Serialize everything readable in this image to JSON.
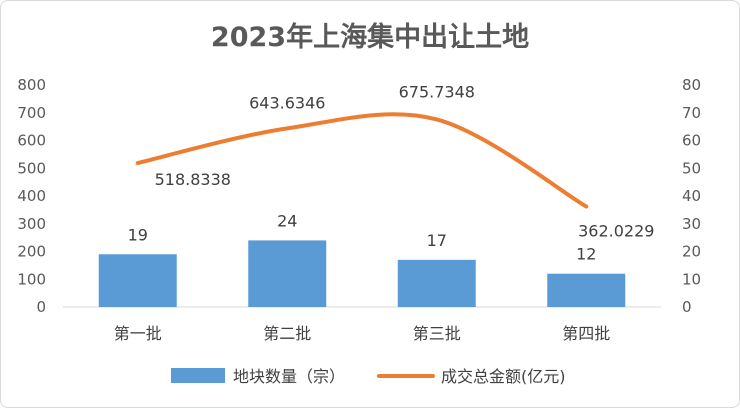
{
  "title": "2023年上海集中出让土地",
  "chart_data": {
    "type": "bar",
    "categories": [
      "第一批",
      "第二批",
      "第三批",
      "第四批"
    ],
    "series": [
      {
        "name": "地块数量（宗）",
        "type": "bar",
        "axis": "left",
        "values": [
          19,
          24,
          17,
          12
        ],
        "color": "#5b9bd5"
      },
      {
        "name": "成交总金额(亿元)",
        "type": "line",
        "axis": "right",
        "values": [
          518.8338,
          643.6346,
          675.7348,
          362.0229
        ],
        "color": "#ed7d31"
      }
    ],
    "data_labels": {
      "bar": [
        "19",
        "24",
        "17",
        "12"
      ],
      "line": [
        "518.8338",
        "643.6346",
        "675.7348",
        "362.0229"
      ]
    },
    "left_axis": {
      "min": 0,
      "max": 800,
      "step": 100,
      "ticks": [
        "0",
        "100",
        "200",
        "300",
        "400",
        "500",
        "600",
        "700",
        "800"
      ]
    },
    "right_axis": {
      "min": 0,
      "max": 80,
      "step": 10,
      "ticks": [
        "0",
        "10",
        "20",
        "30",
        "40",
        "50",
        "60",
        "70",
        "80"
      ]
    },
    "legend_position": "bottom",
    "grid": false
  }
}
